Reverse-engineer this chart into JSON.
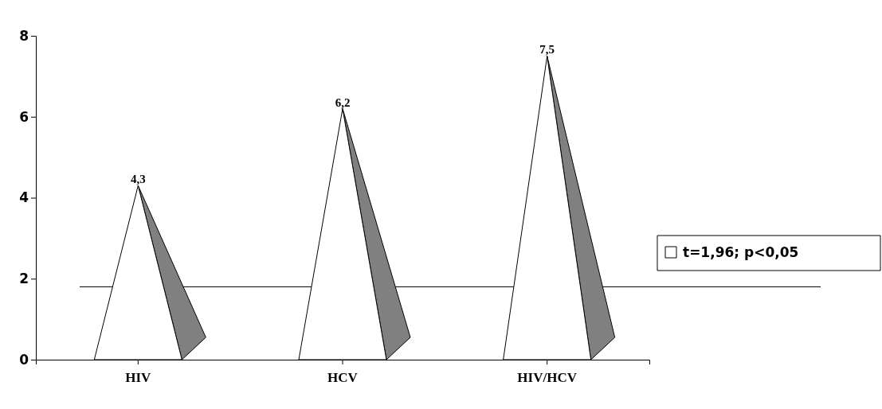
{
  "chart_data": {
    "type": "bar",
    "categories": [
      "HIV",
      "HCV",
      "HIV/HCV"
    ],
    "series": [
      {
        "name": "t=1,96; p<0,05",
        "color": "#ffffff",
        "values": [
          4.3,
          6.2,
          7.5
        ],
        "value_labels": [
          "4,3",
          "6,2",
          "7,5"
        ]
      }
    ],
    "ylim": [
      0,
      8
    ],
    "yticks": [
      0,
      2,
      4,
      6,
      8
    ],
    "legend": "right",
    "ref_lines": [
      {
        "axis": "y",
        "value": 1.8,
        "color": "#000000"
      }
    ]
  }
}
